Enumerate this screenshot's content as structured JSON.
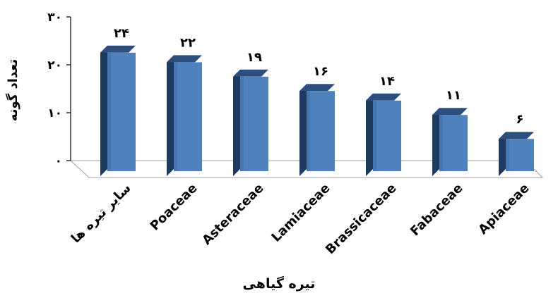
{
  "chart_data": {
    "type": "bar",
    "style": "3d-column",
    "categories": [
      "سایر تیره ها",
      "Poaceae",
      "Asteraceae",
      "Lamiaceae",
      "Brassicaceae",
      "Fabaceae",
      "Apiaceae"
    ],
    "values": [
      24,
      22,
      19,
      16,
      14,
      11,
      6
    ],
    "value_labels": [
      "۲۴",
      "۲۲",
      "۱۹",
      "۱۶",
      "۱۴",
      "۱۱",
      "۶"
    ],
    "ylim": [
      0,
      30
    ],
    "yticks": [
      0,
      10,
      20,
      30
    ],
    "ytick_labels": [
      "۰",
      "۱۰",
      "۲۰",
      "۳۰"
    ],
    "xlabel": "تیره گیاهی",
    "ylabel": "تعداد گونه",
    "grid": false,
    "legend": "none",
    "colors": {
      "bar_front": "#4F81BD",
      "bar_side": "#1F3A5F",
      "bar_top": "#2E4F7E",
      "floor": "#ffffff",
      "axis": "#000000"
    }
  }
}
